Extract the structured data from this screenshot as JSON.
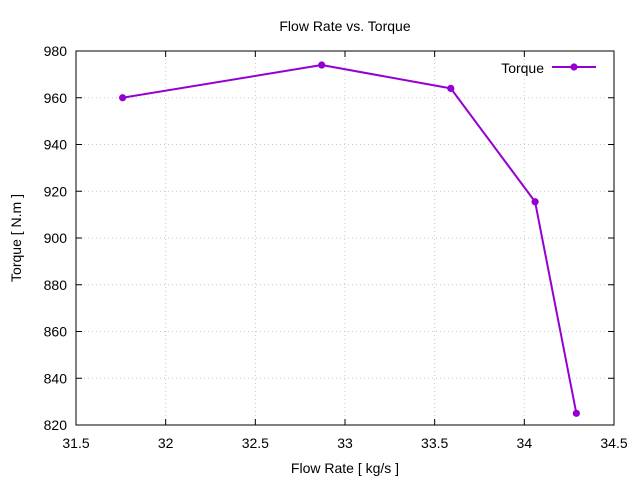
{
  "chart_data": {
    "type": "line",
    "title": "Flow Rate vs. Torque",
    "xlabel": "Flow Rate [ kg/s ]",
    "ylabel": "Torque [ N.m ]",
    "xlim": [
      31.5,
      34.5
    ],
    "ylim": [
      820,
      980
    ],
    "xticks": [
      31.5,
      32,
      32.5,
      33,
      33.5,
      34,
      34.5
    ],
    "xtick_labels": [
      "31.5",
      "32",
      "32.5",
      "33",
      "33.5",
      "34",
      "34.5"
    ],
    "yticks": [
      820,
      840,
      860,
      880,
      900,
      920,
      940,
      960,
      980
    ],
    "ytick_labels": [
      "820",
      "840",
      "860",
      "880",
      "900",
      "920",
      "940",
      "960",
      "980"
    ],
    "grid": true,
    "legend_position": "top-right",
    "series": [
      {
        "name": "Torque",
        "color": "#9400d3",
        "marker": "circle",
        "x": [
          31.76,
          32.87,
          33.59,
          34.06,
          34.29
        ],
        "y": [
          960,
          974,
          964,
          915.5,
          825
        ]
      }
    ]
  }
}
